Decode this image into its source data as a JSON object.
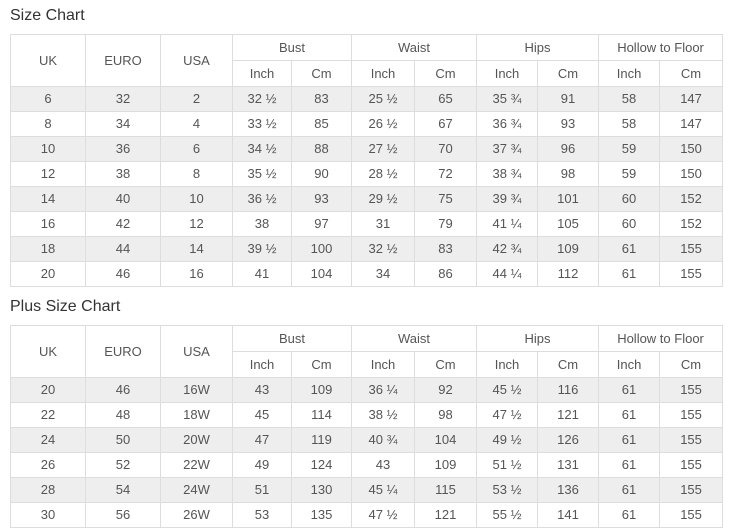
{
  "colors": {
    "border": "#dddddd",
    "header_bg": "#ffffff",
    "row_alt_bg": "#eeeeee",
    "cell_text": "#555555",
    "title_text": "#333333"
  },
  "charts": [
    {
      "title": "Size Chart",
      "single_columns": [
        "UK",
        "EURO",
        "USA"
      ],
      "group_columns": [
        "Bust",
        "Waist",
        "Hips",
        "Hollow to Floor"
      ],
      "sub_columns": [
        "Inch",
        "Cm"
      ],
      "rows": [
        [
          "6",
          "32",
          "2",
          "32 ½",
          "83",
          "25 ½",
          "65",
          "35 ¾",
          "91",
          "58",
          "147"
        ],
        [
          "8",
          "34",
          "4",
          "33 ½",
          "85",
          "26 ½",
          "67",
          "36 ¾",
          "93",
          "58",
          "147"
        ],
        [
          "10",
          "36",
          "6",
          "34 ½",
          "88",
          "27 ½",
          "70",
          "37 ¾",
          "96",
          "59",
          "150"
        ],
        [
          "12",
          "38",
          "8",
          "35 ½",
          "90",
          "28 ½",
          "72",
          "38 ¾",
          "98",
          "59",
          "150"
        ],
        [
          "14",
          "40",
          "10",
          "36 ½",
          "93",
          "29 ½",
          "75",
          "39 ¾",
          "101",
          "60",
          "152"
        ],
        [
          "16",
          "42",
          "12",
          "38",
          "97",
          "31",
          "79",
          "41 ¼",
          "105",
          "60",
          "152"
        ],
        [
          "18",
          "44",
          "14",
          "39 ½",
          "100",
          "32 ½",
          "83",
          "42 ¾",
          "109",
          "61",
          "155"
        ],
        [
          "20",
          "46",
          "16",
          "41",
          "104",
          "34",
          "86",
          "44 ¼",
          "112",
          "61",
          "155"
        ]
      ]
    },
    {
      "title": "Plus Size Chart",
      "single_columns": [
        "UK",
        "EURO",
        "USA"
      ],
      "group_columns": [
        "Bust",
        "Waist",
        "Hips",
        "Hollow to Floor"
      ],
      "sub_columns": [
        "Inch",
        "Cm"
      ],
      "rows": [
        [
          "20",
          "46",
          "16W",
          "43",
          "109",
          "36 ¼",
          "92",
          "45 ½",
          "116",
          "61",
          "155"
        ],
        [
          "22",
          "48",
          "18W",
          "45",
          "114",
          "38 ½",
          "98",
          "47 ½",
          "121",
          "61",
          "155"
        ],
        [
          "24",
          "50",
          "20W",
          "47",
          "119",
          "40 ¾",
          "104",
          "49 ½",
          "126",
          "61",
          "155"
        ],
        [
          "26",
          "52",
          "22W",
          "49",
          "124",
          "43",
          "109",
          "51 ½",
          "131",
          "61",
          "155"
        ],
        [
          "28",
          "54",
          "24W",
          "51",
          "130",
          "45 ¼",
          "115",
          "53 ½",
          "136",
          "61",
          "155"
        ],
        [
          "30",
          "56",
          "26W",
          "53",
          "135",
          "47 ½",
          "121",
          "55 ½",
          "141",
          "61",
          "155"
        ]
      ]
    }
  ]
}
